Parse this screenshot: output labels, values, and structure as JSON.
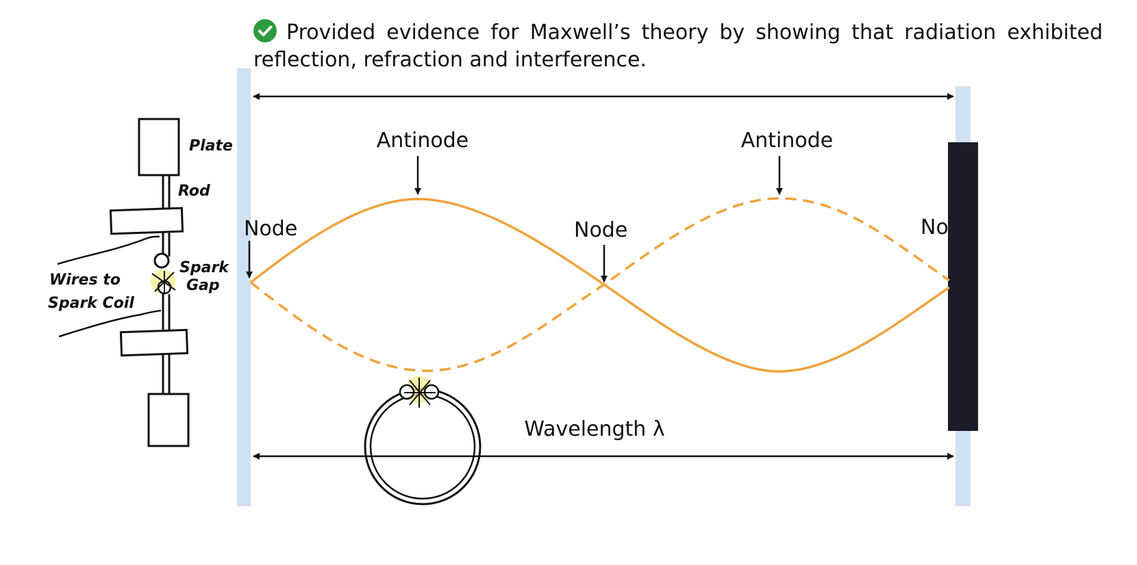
{
  "caption": {
    "icon": "check-circle-icon",
    "text": "Provided evidence for Maxwell’s theory by showing that radiation exhibited reflection, refraction and interference."
  },
  "apparatus": {
    "plate_label": "Plate",
    "rod_label": "Rod",
    "spark_gap_label_1": "Spark",
    "spark_gap_label_2": "Gap",
    "wires_label_1": "Wires to",
    "wires_label_2": "Spark Coil"
  },
  "wave": {
    "antinode_left": "Antinode",
    "antinode_right": "Antinode",
    "node_left": "Node",
    "node_middle": "Node",
    "node_right": "Node",
    "wavelength_label": "Wavelength λ"
  },
  "colors": {
    "wave": "#f0a23c",
    "pillar": "#cfe0f1",
    "reflector": "#1b1b2a",
    "check": "#2e9a3e"
  }
}
